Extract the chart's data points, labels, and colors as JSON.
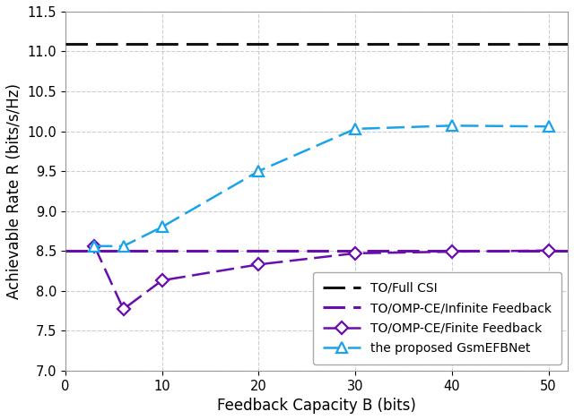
{
  "title": "",
  "xlabel": "Feedback Capacity B (bits)",
  "ylabel": "Achievable Rate R (bits/s/Hz)",
  "xlim": [
    0,
    52
  ],
  "ylim": [
    7.0,
    11.5
  ],
  "yticks": [
    7.0,
    7.5,
    8.0,
    8.5,
    9.0,
    9.5,
    10.0,
    10.5,
    11.0,
    11.5
  ],
  "xticks": [
    0,
    10,
    20,
    30,
    40,
    50
  ],
  "full_csi_value": 11.1,
  "infinite_feedback_value": 8.505,
  "finite_feedback_x": [
    3,
    6,
    10,
    20,
    30,
    40,
    50
  ],
  "finite_feedback_y": [
    8.56,
    7.77,
    8.13,
    8.33,
    8.47,
    8.49,
    8.505
  ],
  "proposed_x": [
    3,
    6,
    10,
    20,
    30,
    40,
    50
  ],
  "proposed_y": [
    8.56,
    8.56,
    8.8,
    9.5,
    10.03,
    10.07,
    10.06
  ],
  "color_black": "#111111",
  "color_purple": "#6a0dad",
  "color_blue": "#1aa3e8",
  "legend_labels": [
    "TO/Full CSI",
    "TO/OMP-CE/Infinite Feedback",
    "TO/OMP-CE/Finite Feedback",
    "the proposed GsmEFBNet"
  ],
  "grid_color": "#c8c8c8",
  "background_color": "#ffffff",
  "linewidth": 2.0,
  "markersize_diamond": 7,
  "markersize_triangle": 8
}
